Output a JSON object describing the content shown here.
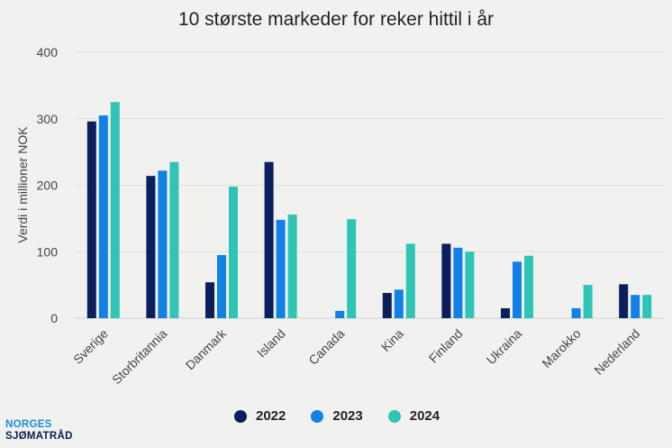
{
  "chart_data": {
    "type": "bar",
    "title": "10 største markeder for reker hittil i år",
    "xlabel": "",
    "ylabel": "Verdi i millioner NOK",
    "ylim": [
      0,
      400
    ],
    "yticks": [
      "0",
      "100",
      "200",
      "300",
      "400"
    ],
    "grid": true,
    "legend_position": "bottom",
    "categories": [
      "Sverige",
      "Storbritannia",
      "Danmark",
      "Island",
      "Canada",
      "Kina",
      "Finland",
      "Ukraina",
      "Marokko",
      "Nederland"
    ],
    "series": [
      {
        "name": "2022",
        "color": "#0b1f5c",
        "values": [
          296,
          214,
          54,
          235,
          0,
          38,
          112,
          15,
          0,
          51
        ]
      },
      {
        "name": "2023",
        "color": "#1181e6",
        "values": [
          305,
          222,
          95,
          148,
          11,
          43,
          106,
          85,
          15,
          35
        ]
      },
      {
        "name": "2024",
        "color": "#2ec4b6",
        "values": [
          325,
          235,
          198,
          156,
          149,
          112,
          100,
          94,
          50,
          35
        ]
      }
    ]
  },
  "logo": {
    "line1": "NORGES",
    "line2": "SJØMATRÅD"
  }
}
